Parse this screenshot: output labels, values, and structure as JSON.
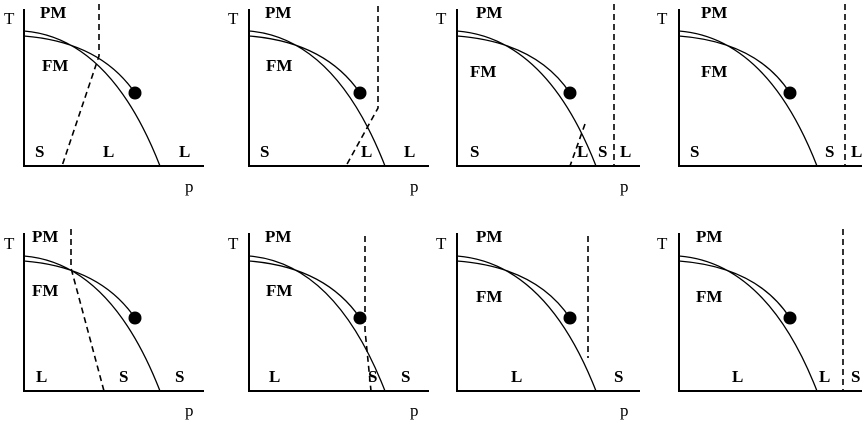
{
  "axis_labels": {
    "y": "T",
    "x": "p"
  },
  "phase_labels": {
    "pm": "PM",
    "fm": "FM"
  },
  "panels": [
    {
      "id": "top-1",
      "bottom_labels": [
        "S",
        "L",
        "L"
      ]
    },
    {
      "id": "top-2",
      "bottom_labels": [
        "S",
        "L",
        "L"
      ]
    },
    {
      "id": "top-3",
      "bottom_labels": [
        "S",
        "L",
        "S",
        "L"
      ]
    },
    {
      "id": "top-4",
      "bottom_labels": [
        "S",
        "S",
        "L"
      ]
    },
    {
      "id": "bottom-1",
      "bottom_labels": [
        "L",
        "S",
        "S"
      ]
    },
    {
      "id": "bottom-2",
      "bottom_labels": [
        "L",
        "S",
        "S"
      ]
    },
    {
      "id": "bottom-3",
      "bottom_labels": [
        "L",
        "S"
      ]
    },
    {
      "id": "bottom-4",
      "bottom_labels": [
        "L",
        "L",
        "S"
      ]
    }
  ]
}
